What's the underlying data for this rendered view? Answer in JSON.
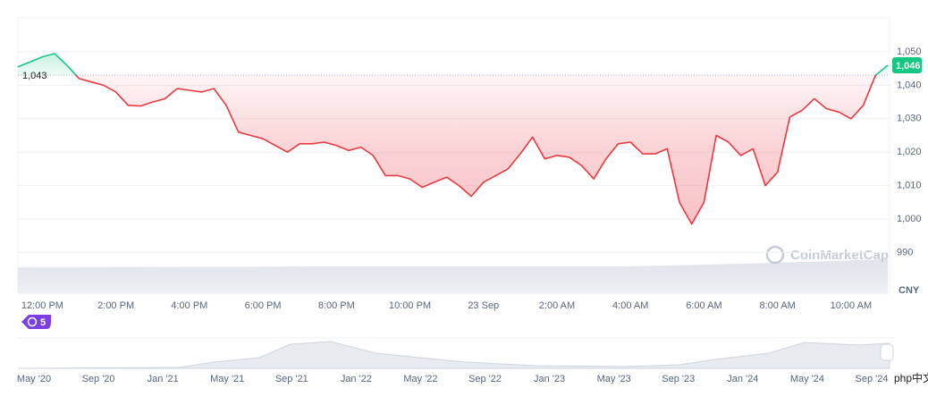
{
  "chart_data": {
    "type": "line",
    "categories": [
      null,
      null,
      "12:00 PM",
      null,
      null,
      null,
      null,
      null,
      "2:00 PM",
      null,
      null,
      null,
      null,
      null,
      "4:00 PM",
      null,
      null,
      null,
      null,
      null,
      "6:00 PM",
      null,
      null,
      null,
      null,
      null,
      "8:00 PM",
      null,
      null,
      null,
      null,
      null,
      "10:00 PM",
      null,
      null,
      null,
      null,
      null,
      "23 Sep",
      null,
      null,
      null,
      null,
      null,
      "2:00 AM",
      null,
      null,
      null,
      null,
      null,
      "4:00 AM",
      null,
      null,
      null,
      null,
      null,
      "6:00 AM",
      null,
      null,
      null,
      null,
      null,
      "8:00 AM",
      null,
      null,
      null,
      null,
      null,
      "10:00 AM",
      null,
      null,
      null
    ],
    "values": [
      1045.5,
      1047,
      1048.5,
      1049.5,
      1046,
      1042,
      1041,
      1040,
      1038,
      1034,
      1033.8,
      1035,
      1036,
      1039,
      1038.5,
      1038,
      1039,
      1034,
      1026,
      1025,
      1024,
      1022,
      1020,
      1022.5,
      1022.5,
      1023,
      1022,
      1020.5,
      1021.5,
      1019,
      1013,
      1013,
      1012,
      1009.5,
      1011,
      1012.5,
      1010,
      1006.8,
      1011,
      1013,
      1015,
      1019.5,
      1024.5,
      1018,
      1019,
      1018.5,
      1016,
      1012,
      1018,
      1022.5,
      1023,
      1019.5,
      1019.5,
      1021,
      1005,
      998.5,
      1005,
      1025,
      1023,
      1019,
      1021,
      1010,
      1014,
      1030.5,
      1032.5,
      1036,
      1033,
      1032,
      1030,
      1034,
      1043,
      1046
    ],
    "baseline": {
      "value": 1043,
      "label": "1,043"
    },
    "current": {
      "value": 1046,
      "label": "1,046"
    },
    "up_color": "#16c784",
    "down_color": "#ea3943",
    "ylim": [
      987,
      1060
    ],
    "yticks": [
      990,
      {
        "value": 1000,
        "label": "1,000"
      },
      {
        "value": 1010,
        "label": "1,010"
      },
      {
        "value": 1020,
        "label": "1,020"
      },
      {
        "value": 1030,
        "label": "1,030"
      },
      {
        "value": 1040,
        "label": "1,040"
      },
      {
        "value": 1050,
        "label": "1,050"
      }
    ],
    "grid": true,
    "currency": "CNY",
    "watermark": "CoinMarketCap",
    "badge": "5",
    "navigator_labels": [
      "May '20",
      "Sep '20",
      "Jan '21",
      "May '21",
      "Sep '21",
      "Jan '22",
      "May '22",
      "Sep '22",
      "Jan '23",
      "May '23",
      "Sep '23",
      "Jan '24",
      "May '24",
      "Sep '24"
    ],
    "site_watermark": "php中文网"
  }
}
